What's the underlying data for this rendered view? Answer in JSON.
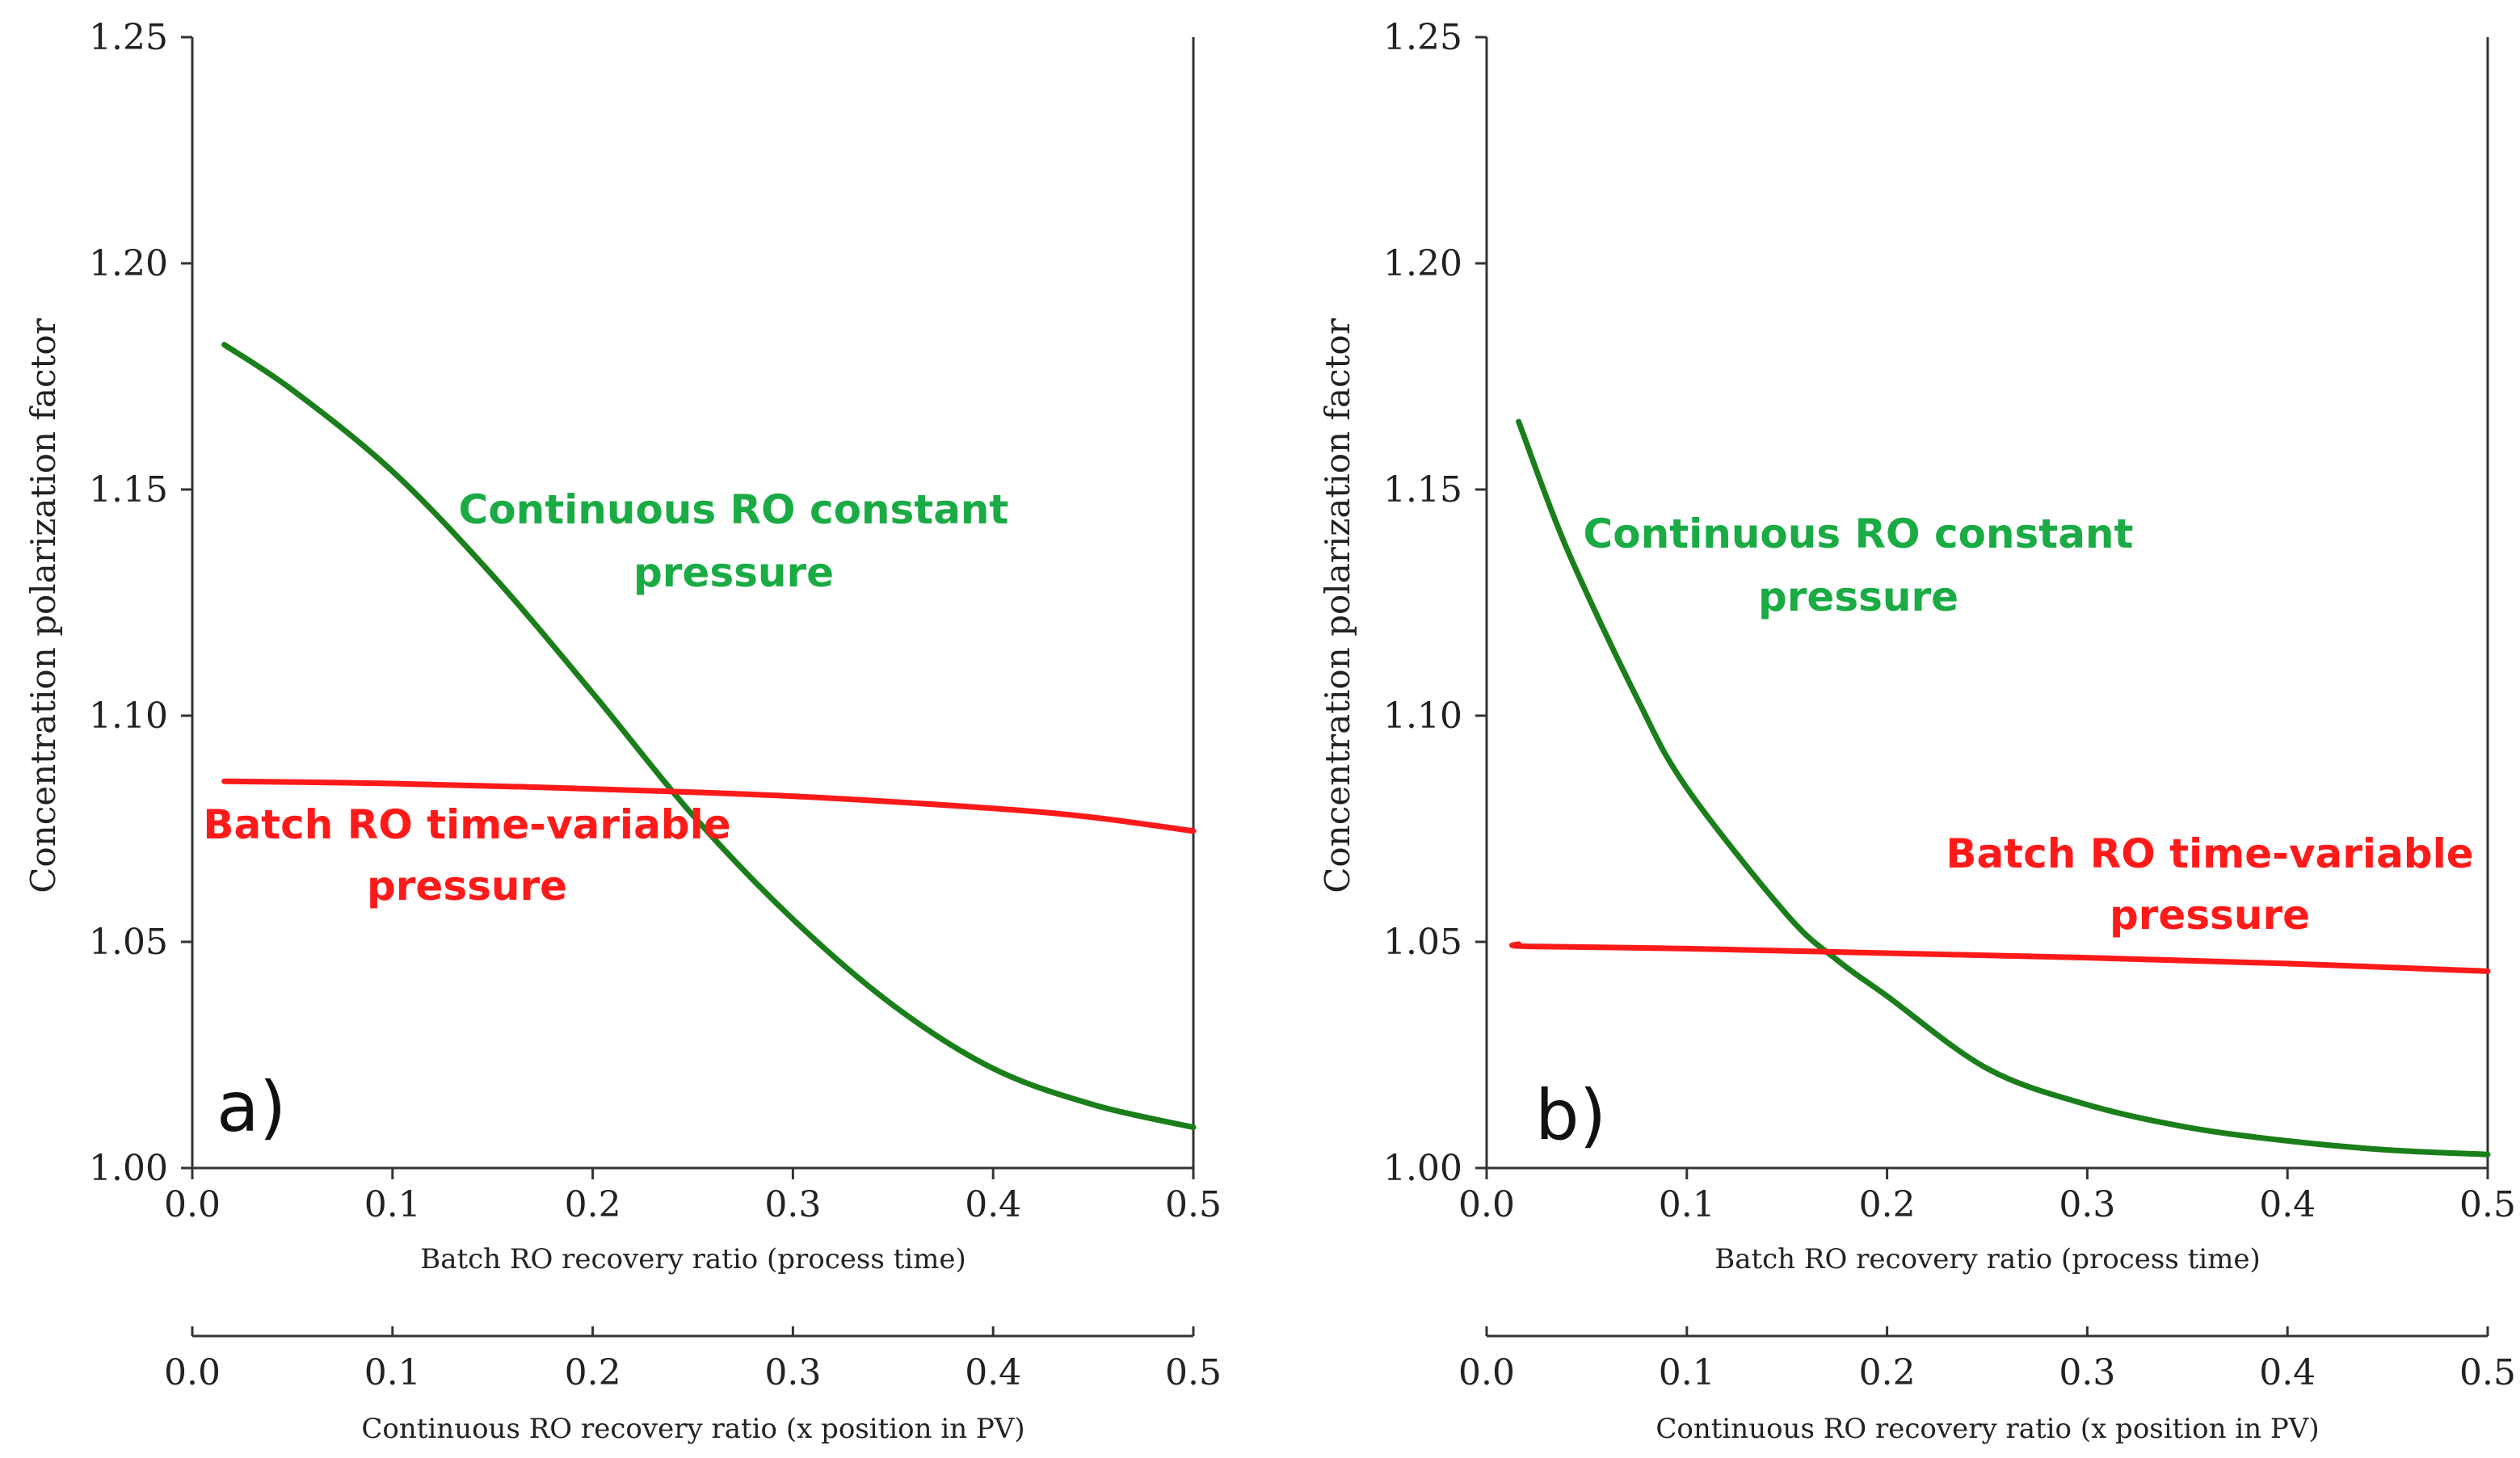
{
  "chart_data": [
    {
      "type": "line",
      "panel_label": "a)",
      "xlabel": "Batch RO recovery ratio (process time)",
      "xlabel_secondary": "Continuous RO recovery ratio (x position in PV)",
      "ylabel": "Concentration polarization factor",
      "xlim": [
        0.0,
        0.5
      ],
      "ylim": [
        1.0,
        1.25
      ],
      "x_ticks": [
        "0.0",
        "0.1",
        "0.2",
        "0.3",
        "0.4",
        "0.5"
      ],
      "y_ticks": [
        "1.00",
        "1.05",
        "1.10",
        "1.15",
        "1.20",
        "1.25"
      ],
      "grid": false,
      "annotations": {
        "continuous_line1": "Continuous RO constant",
        "continuous_line2": "pressure",
        "batch_line1": "Batch RO time-variable",
        "batch_line2": "pressure"
      },
      "series": [
        {
          "name": "Continuous RO constant pressure",
          "color": "#1a7f1a",
          "x": [
            0.016,
            0.05,
            0.1,
            0.15,
            0.2,
            0.25,
            0.3,
            0.35,
            0.4,
            0.45,
            0.5
          ],
          "y": [
            1.182,
            1.172,
            1.154,
            1.131,
            1.105,
            1.078,
            1.055,
            1.036,
            1.022,
            1.014,
            1.009
          ]
        },
        {
          "name": "Batch RO time-variable pressure",
          "color": "#ff1a1a",
          "x": [
            0.016,
            0.1,
            0.2,
            0.3,
            0.4,
            0.45,
            0.5
          ],
          "y": [
            1.0855,
            1.085,
            1.0838,
            1.0822,
            1.0795,
            1.0775,
            1.0745
          ]
        }
      ]
    },
    {
      "type": "line",
      "panel_label": "b)",
      "xlabel": "Batch RO recovery ratio (process time)",
      "xlabel_secondary": "Continuous RO recovery ratio (x position in PV)",
      "ylabel": "Concentration polarization factor",
      "xlim": [
        0.0,
        0.5
      ],
      "ylim": [
        1.0,
        1.25
      ],
      "x_ticks": [
        "0.0",
        "0.1",
        "0.2",
        "0.3",
        "0.4",
        "0.5"
      ],
      "y_ticks": [
        "1.00",
        "1.05",
        "1.10",
        "1.15",
        "1.20",
        "1.25"
      ],
      "grid": false,
      "annotations": {
        "continuous_line1": "Continuous RO constant",
        "continuous_line2": "pressure",
        "batch_line1": "Batch RO time-variable",
        "batch_line2": "pressure"
      },
      "series": [
        {
          "name": "Continuous RO constant pressure",
          "color": "#1a7f1a",
          "x": [
            0.016,
            0.04,
            0.075,
            0.1,
            0.15,
            0.175,
            0.2,
            0.25,
            0.3,
            0.35,
            0.4,
            0.45,
            0.5
          ],
          "y": [
            1.165,
            1.137,
            1.104,
            1.084,
            1.056,
            1.046,
            1.038,
            1.022,
            1.014,
            1.009,
            1.006,
            1.004,
            1.003
          ]
        },
        {
          "name": "Batch RO time-variable pressure",
          "color": "#ff1a1a",
          "x": [
            0.016,
            0.02,
            0.1,
            0.2,
            0.3,
            0.4,
            0.5
          ],
          "y": [
            1.0495,
            1.049,
            1.0485,
            1.0475,
            1.0465,
            1.0452,
            1.0435
          ]
        }
      ]
    }
  ]
}
